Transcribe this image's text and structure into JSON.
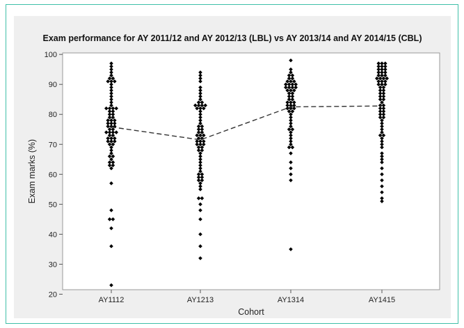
{
  "chart_data": {
    "type": "scatter",
    "title": "Exam performance for AY 2011/12 and AY 2012/13 (LBL) vs AY 2013/14 and AY 2014/15 (CBL)",
    "xlabel": "Cohort",
    "ylabel": "Exam marks (%)",
    "categories": [
      "AY1112",
      "AY1213",
      "AY1314",
      "AY1415"
    ],
    "ylim": [
      20,
      100
    ],
    "yticks": [
      20,
      30,
      40,
      50,
      60,
      70,
      80,
      90,
      100
    ],
    "grid": false,
    "marker_color": "#000000",
    "mean_line": {
      "style": "dashed",
      "color": "#333333",
      "values": [
        75.8,
        71.5,
        82.5,
        82.8
      ]
    },
    "series": [
      {
        "category": "AY1112",
        "values": [
          97,
          96,
          95,
          94,
          93,
          92,
          92,
          91,
          91,
          91,
          90,
          89,
          88,
          87,
          86,
          85,
          84,
          83,
          82,
          82,
          82,
          82,
          81,
          81,
          80,
          80,
          79,
          79,
          78,
          78,
          78,
          77,
          77,
          77,
          76,
          76,
          76,
          75,
          75,
          74,
          74,
          74,
          74,
          73,
          73,
          72,
          72,
          72,
          71,
          71,
          71,
          70,
          70,
          69,
          68,
          67,
          66,
          66,
          65,
          64,
          64,
          63,
          63,
          62,
          57,
          48,
          45,
          45,
          42,
          36,
          23
        ]
      },
      {
        "category": "AY1213",
        "values": [
          94,
          93,
          92,
          91,
          89,
          88,
          87,
          86,
          85,
          84,
          84,
          83,
          83,
          83,
          83,
          82,
          82,
          82,
          81,
          80,
          79,
          78,
          77,
          76,
          76,
          75,
          75,
          74,
          74,
          73,
          73,
          73,
          72,
          72,
          71,
          71,
          71,
          70,
          70,
          70,
          69,
          69,
          68,
          68,
          67,
          66,
          65,
          64,
          63,
          62,
          61,
          60,
          60,
          59,
          59,
          58,
          58,
          57,
          56,
          55,
          52,
          52,
          50,
          48,
          45,
          40,
          36,
          32
        ]
      },
      {
        "category": "AY1314",
        "values": [
          98,
          95,
          94,
          93,
          93,
          92,
          92,
          91,
          91,
          91,
          90,
          90,
          90,
          90,
          89,
          89,
          89,
          89,
          88,
          88,
          88,
          87,
          87,
          86,
          86,
          85,
          85,
          84,
          84,
          84,
          83,
          83,
          83,
          82,
          82,
          82,
          81,
          81,
          80,
          79,
          78,
          77,
          76,
          75,
          75,
          74,
          73,
          72,
          71,
          70,
          69,
          69,
          67,
          64,
          62,
          60,
          58,
          35
        ]
      },
      {
        "category": "AY1415",
        "values": [
          97,
          97,
          97,
          96,
          96,
          96,
          95,
          95,
          95,
          94,
          94,
          94,
          93,
          93,
          93,
          92,
          92,
          92,
          92,
          91,
          91,
          91,
          90,
          90,
          90,
          89,
          89,
          88,
          88,
          87,
          87,
          86,
          86,
          85,
          85,
          84,
          83,
          83,
          82,
          82,
          81,
          81,
          80,
          80,
          79,
          79,
          78,
          77,
          76,
          75,
          74,
          73,
          73,
          72,
          71,
          70,
          69,
          67,
          66,
          65,
          64,
          62,
          60,
          58,
          56,
          54,
          52,
          51
        ]
      }
    ]
  }
}
